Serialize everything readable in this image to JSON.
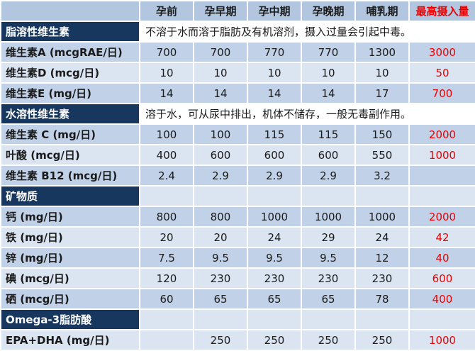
{
  "palette": {
    "header_bg": "#b2c6e0",
    "section_bg": "#17375e",
    "band_dark": "#c1d2e8",
    "band_light": "#dbe5f1",
    "note_bg": "#ffffff",
    "max_color": "#ee0000",
    "text_color": "#1a1a1a"
  },
  "chart_data": {
    "type": "table",
    "columns": [
      "",
      "孕前",
      "孕早期",
      "孕中期",
      "孕晚期",
      "哺乳期",
      "最高摄入量"
    ],
    "rows": [
      {
        "type": "section",
        "label": "脂溶性维生素",
        "note": "不溶于水而溶于脂肪及有机溶剂，摄入过量会引起中毒。"
      },
      {
        "type": "data",
        "shade": "dark",
        "label": "维生素A (mcgRAE/日)",
        "values": [
          "700",
          "700",
          "770",
          "770",
          "1300"
        ],
        "max": "3000"
      },
      {
        "type": "data",
        "shade": "light",
        "label": "维生素D (mcg/日)",
        "values": [
          "10",
          "10",
          "10",
          "10",
          "10"
        ],
        "max": "50"
      },
      {
        "type": "data",
        "shade": "dark",
        "label": "维生素E (mg/日)",
        "values": [
          "14",
          "14",
          "14",
          "14",
          "17"
        ],
        "max": "700"
      },
      {
        "type": "section",
        "label": "水溶性维生素",
        "note": "溶于水，可从尿中排出，机体不储存，一般无毒副作用。"
      },
      {
        "type": "data",
        "shade": "dark",
        "label": "维生素 C (mg/日)",
        "values": [
          "100",
          "100",
          "115",
          "115",
          "150"
        ],
        "max": "2000"
      },
      {
        "type": "data",
        "shade": "light",
        "label": "叶酸 (mcg/日)",
        "values": [
          "400",
          "600",
          "600",
          "600",
          "550"
        ],
        "max": "1000"
      },
      {
        "type": "data",
        "shade": "dark",
        "label": "维生素 B12 (mcg/日)",
        "values": [
          "2.4",
          "2.9",
          "2.9",
          "2.9",
          "3.2"
        ],
        "max": ""
      },
      {
        "type": "section",
        "label": "矿物质",
        "note": ""
      },
      {
        "type": "data",
        "shade": "dark",
        "label": "钙 (mg/日)",
        "values": [
          "800",
          "800",
          "1000",
          "1000",
          "1000"
        ],
        "max": "2000"
      },
      {
        "type": "data",
        "shade": "light",
        "label": "铁 (mg/日)",
        "values": [
          "20",
          "20",
          "24",
          "29",
          "24"
        ],
        "max": "42"
      },
      {
        "type": "data",
        "shade": "dark",
        "label": "锌 (mg/日)",
        "values": [
          "7.5",
          "9.5",
          "9.5",
          "9.5",
          "12"
        ],
        "max": "40"
      },
      {
        "type": "data",
        "shade": "light",
        "label": "碘 (mcg/日)",
        "values": [
          "120",
          "230",
          "230",
          "230",
          "230"
        ],
        "max": "600"
      },
      {
        "type": "data",
        "shade": "dark",
        "label": "硒 (mcg/日)",
        "values": [
          "60",
          "65",
          "65",
          "65",
          "78"
        ],
        "max": "400"
      },
      {
        "type": "section",
        "label": "Omega-3脂肪酸",
        "note": ""
      },
      {
        "type": "data",
        "shade": "light",
        "label": "EPA+DHA (mg/日)",
        "values": [
          "",
          "250",
          "250",
          "250",
          "250"
        ],
        "max": "1000"
      }
    ]
  }
}
